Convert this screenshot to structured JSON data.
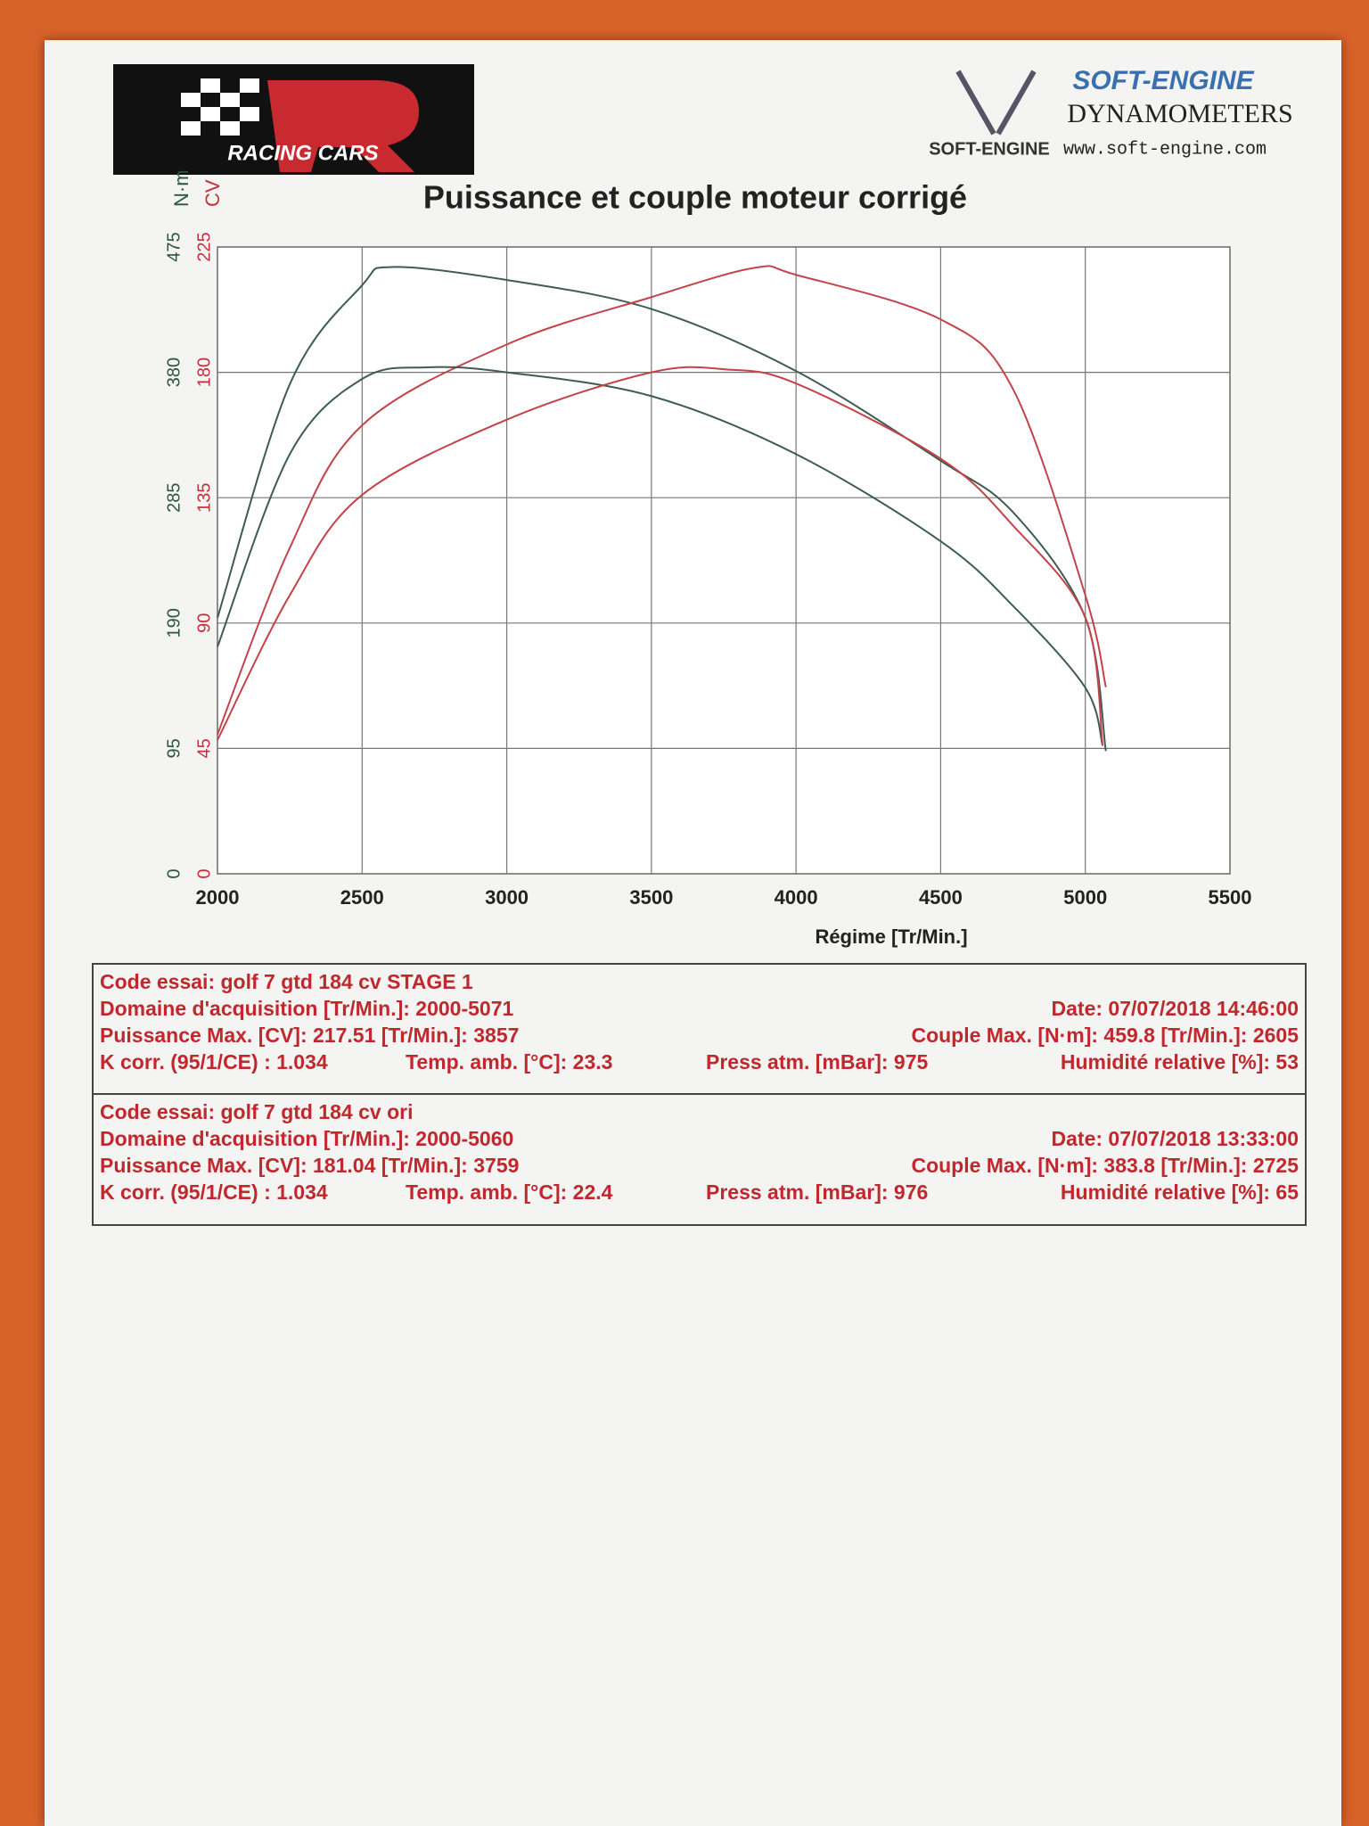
{
  "header": {
    "logo_text": "RACING CARS",
    "brand": "SOFT-ENGINE",
    "brand_sub": "DYNAMOMETERS",
    "brand_mark": "SOFT-ENGINE",
    "url": "www.soft-engine.com"
  },
  "chart_data": {
    "type": "line",
    "title": "Puissance et couple moteur corrigé",
    "x_label": "Régime [Tr/Min.]",
    "y_label": "N·m",
    "y2_label": "CV",
    "xlim": [
      2000,
      5500
    ],
    "xticks": [
      2000,
      2500,
      3000,
      3500,
      4000,
      4500,
      5000,
      5500
    ],
    "ylim": [
      0,
      475
    ],
    "yticks": [
      0,
      95,
      190,
      285,
      380,
      475
    ],
    "y2lim": [
      0,
      225
    ],
    "y2ticks": [
      0,
      45,
      90,
      135,
      180,
      225
    ],
    "grid": true,
    "y_color": "#2e5443",
    "y2_color": "#c4303a",
    "series": [
      {
        "color": "#3f5c52",
        "x": [
          2000,
          2250,
          2500,
          2605,
          3000,
          3500,
          4000,
          4500,
          4750,
          5000,
          5071
        ],
        "values": [
          194,
          371,
          446,
          459.8,
          450,
          428,
          381,
          313,
          274,
          194,
          93
        ]
      },
      {
        "color": "#c4434a",
        "axis": "y2",
        "x": [
          2000,
          2250,
          2500,
          3000,
          3500,
          3857,
          4000,
          4500,
          4750,
          5000,
          5071
        ],
        "values": [
          50,
          117,
          161,
          190,
          207,
          217.51,
          215,
          199,
          174,
          100,
          67
        ]
      },
      {
        "color": "#3f5c52",
        "x": [
          2000,
          2250,
          2500,
          2725,
          3000,
          3500,
          4000,
          4500,
          4750,
          5000,
          5060
        ],
        "values": [
          172,
          318,
          375,
          383.8,
          380,
          362,
          318,
          252,
          203,
          141,
          97
        ]
      },
      {
        "color": "#c4434a",
        "axis": "y2",
        "x": [
          2000,
          2250,
          2500,
          3000,
          3500,
          3759,
          4000,
          4500,
          4750,
          5000,
          5060
        ],
        "values": [
          48,
          100,
          136,
          163,
          180,
          181.04,
          176,
          149,
          125,
          92,
          46
        ]
      }
    ]
  },
  "tests": [
    {
      "rows": [
        [
          "Code essai: golf 7 gtd 184 cv STAGE 1"
        ],
        [
          "Domaine d'acquisition [Tr/Min.]: 2000-5071",
          "Date: 07/07/2018   14:46:00"
        ],
        [
          "Puissance Max. [CV]: 217.51   [Tr/Min.]: 3857",
          "Couple Max. [N·m]: 459.8   [Tr/Min.]: 2605"
        ],
        [
          "K corr. (95/1/CE) : 1.034",
          "Temp. amb. [°C]: 23.3",
          "Press atm. [mBar]: 975",
          "Humidité relative [%]: 53"
        ]
      ]
    },
    {
      "rows": [
        [
          "Code essai: golf 7 gtd 184 cv ori"
        ],
        [
          "Domaine d'acquisition [Tr/Min.]: 2000-5060",
          "Date: 07/07/2018   13:33:00"
        ],
        [
          "Puissance Max. [CV]: 181.04   [Tr/Min.]: 3759",
          "Couple Max. [N·m]: 383.8   [Tr/Min.]: 2725"
        ],
        [
          "K corr. (95/1/CE) : 1.034",
          "Temp. amb. [°C]: 22.4",
          "Press atm. [mBar]: 976",
          "Humidité relative [%]: 65"
        ]
      ]
    }
  ]
}
